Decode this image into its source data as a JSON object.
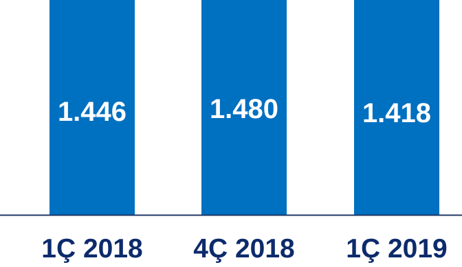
{
  "chart_data": {
    "type": "bar",
    "categories": [
      "1Ç 2018",
      "4Ç 2018",
      "1Ç 2019"
    ],
    "values": [
      1446,
      1480,
      1418
    ],
    "data_labels": [
      "1.446",
      "1.480",
      "1.418"
    ],
    "title": "",
    "xlabel": "",
    "ylabel": "",
    "ylim": [
      0,
      1500
    ],
    "grid": false,
    "legend": "none",
    "colors": {
      "bar": "#0070c0",
      "axis": "#1f3864",
      "tick_text": "#0d2b6b",
      "bar_text": "#ffffff"
    }
  }
}
